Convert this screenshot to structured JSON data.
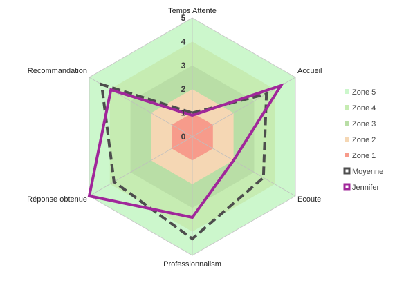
{
  "chart_data": {
    "type": "radar",
    "categories": [
      "Temps Attente",
      "Accueil",
      "Ecoute",
      "Professionnalism",
      "Réponse obtenue",
      "Recommandation"
    ],
    "rlim": [
      0,
      5
    ],
    "ticks": [
      0,
      1,
      2,
      3,
      4,
      5
    ],
    "zones": [
      {
        "name": "Zone 5",
        "value": 5,
        "color": "#ccf7cc"
      },
      {
        "name": "Zone 4",
        "value": 4,
        "color": "#c6ecb2"
      },
      {
        "name": "Zone 3",
        "value": 3,
        "color": "#b9dea6"
      },
      {
        "name": "Zone 2",
        "value": 2,
        "color": "#f5d7b4"
      },
      {
        "name": "Zone 1",
        "value": 1,
        "color": "#f79b8b"
      }
    ],
    "series": [
      {
        "name": "Moyenne",
        "values": [
          1.0,
          3.6,
          3.45,
          4.3,
          3.8,
          4.4
        ],
        "color": "#4d4d4d",
        "dash": true
      },
      {
        "name": "Jennifer",
        "values": [
          0.9,
          4.3,
          2.0,
          3.4,
          5.0,
          3.95
        ],
        "color": "#a0279a",
        "dash": false
      }
    ],
    "grid": true,
    "legend_position": "right"
  }
}
